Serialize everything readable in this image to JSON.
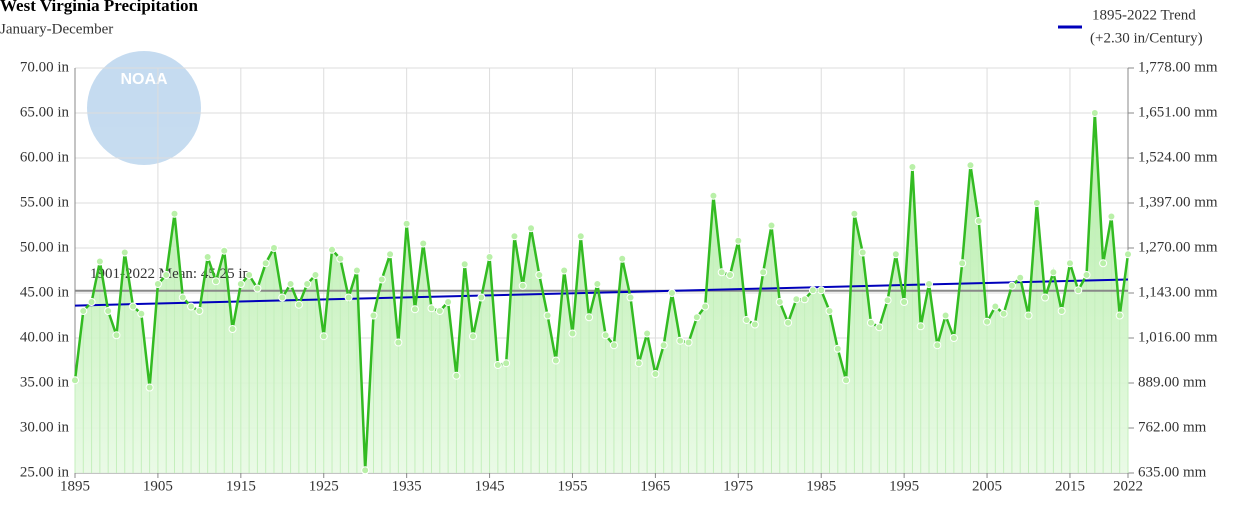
{
  "chart_data": {
    "type": "line",
    "title": "West Virginia Precipitation",
    "subtitle": "January-December",
    "watermark": "NOAA",
    "xlim": [
      1895,
      2022
    ],
    "xticks": [
      1895,
      1905,
      1915,
      1925,
      1935,
      1945,
      1955,
      1965,
      1975,
      1985,
      1995,
      2005,
      2015,
      2022
    ],
    "ylim": [
      25,
      70
    ],
    "yticks": [
      {
        "value": 25,
        "label": "25.00 in"
      },
      {
        "value": 30,
        "label": "30.00 in"
      },
      {
        "value": 35,
        "label": "35.00 in"
      },
      {
        "value": 40,
        "label": "40.00 in"
      },
      {
        "value": 45,
        "label": "45.00 in"
      },
      {
        "value": 50,
        "label": "50.00 in"
      },
      {
        "value": 55,
        "label": "55.00 in"
      },
      {
        "value": 60,
        "label": "60.00 in"
      },
      {
        "value": 65,
        "label": "65.00 in"
      },
      {
        "value": 70,
        "label": "70.00 in"
      }
    ],
    "y2lim": [
      635,
      1778
    ],
    "y2ticks": [
      {
        "value": 635,
        "label": "635.00 mm"
      },
      {
        "value": 762,
        "label": "762.00 mm"
      },
      {
        "value": 889,
        "label": "889.00 mm"
      },
      {
        "value": 1016,
        "label": "1,016.00 mm"
      },
      {
        "value": 1143,
        "label": "1,143.00 mm"
      },
      {
        "value": 1270,
        "label": "1,270.00 mm"
      },
      {
        "value": 1397,
        "label": "1,397.00 mm"
      },
      {
        "value": 1524,
        "label": "1,524.00 mm"
      },
      {
        "value": 1651,
        "label": "1,651.00 mm"
      },
      {
        "value": 1778,
        "label": "1,778.00 mm"
      }
    ],
    "grid": true,
    "series": [
      {
        "name": "Precipitation",
        "color": "#33bb22",
        "x": [
          1895,
          1896,
          1897,
          1898,
          1899,
          1900,
          1901,
          1902,
          1903,
          1904,
          1905,
          1906,
          1907,
          1908,
          1909,
          1910,
          1911,
          1912,
          1913,
          1914,
          1915,
          1916,
          1917,
          1918,
          1919,
          1920,
          1921,
          1922,
          1923,
          1924,
          1925,
          1926,
          1927,
          1928,
          1929,
          1930,
          1931,
          1932,
          1933,
          1934,
          1935,
          1936,
          1937,
          1938,
          1939,
          1940,
          1941,
          1942,
          1943,
          1944,
          1945,
          1946,
          1947,
          1948,
          1949,
          1950,
          1951,
          1952,
          1953,
          1954,
          1955,
          1956,
          1957,
          1958,
          1959,
          1960,
          1961,
          1962,
          1963,
          1964,
          1965,
          1966,
          1967,
          1968,
          1969,
          1970,
          1971,
          1972,
          1973,
          1974,
          1975,
          1976,
          1977,
          1978,
          1979,
          1980,
          1981,
          1982,
          1983,
          1984,
          1985,
          1986,
          1987,
          1988,
          1989,
          1990,
          1991,
          1992,
          1993,
          1994,
          1995,
          1996,
          1997,
          1998,
          1999,
          2000,
          2001,
          2002,
          2003,
          2004,
          2005,
          2006,
          2007,
          2008,
          2009,
          2010,
          2011,
          2012,
          2013,
          2014,
          2015,
          2016,
          2017,
          2018,
          2019,
          2020,
          2021,
          2022
        ],
        "values": [
          35.3,
          43,
          44,
          48.5,
          43,
          40.3,
          49.5,
          43.5,
          42.7,
          34.5,
          46,
          47,
          53.8,
          44.5,
          43.5,
          43,
          49,
          46.3,
          49.7,
          41,
          46,
          47,
          45.5,
          48.3,
          50,
          44.5,
          46,
          43.7,
          46,
          47,
          40.2,
          49.8,
          48.8,
          44.5,
          47.5,
          25.3,
          42.5,
          46.5,
          49.3,
          39.5,
          52.7,
          43.2,
          50.5,
          43.3,
          43,
          44,
          35.8,
          48.2,
          40.2,
          44.5,
          49,
          37,
          37.2,
          51.3,
          45.8,
          52.2,
          47,
          42.5,
          37.5,
          47.5,
          40.5,
          51.3,
          42.3,
          46,
          40.3,
          39.2,
          48.8,
          44.5,
          37.2,
          40.5,
          36,
          39.2,
          45,
          39.7,
          39.5,
          42.3,
          43.5,
          55.8,
          47.3,
          47,
          50.8,
          42,
          41.5,
          47.3,
          52.5,
          44,
          41.7,
          44.3,
          44.3,
          45.3,
          45.3,
          43,
          38.8,
          35.3,
          53.8,
          49.5,
          41.7,
          41.2,
          44.2,
          49.3,
          44,
          59,
          41.3,
          46,
          39.2,
          42.5,
          40,
          48.3,
          59.2,
          53,
          41.8,
          43.5,
          42.7,
          45.8,
          46.7,
          42.5,
          55,
          44.5,
          47.3,
          43,
          48.3,
          45.3,
          47,
          65,
          48.3,
          53.5,
          42.5,
          49.3
        ]
      }
    ],
    "trend": {
      "name": "1895-2022 Trend",
      "note": "(+2.30 in/Century)",
      "color": "#0000bb",
      "x": [
        1895,
        2022
      ],
      "values": [
        43.6,
        46.5
      ]
    },
    "mean": {
      "label": "1901-2022 Mean: 45.25 in",
      "value": 45.25,
      "color": "#888888"
    }
  }
}
